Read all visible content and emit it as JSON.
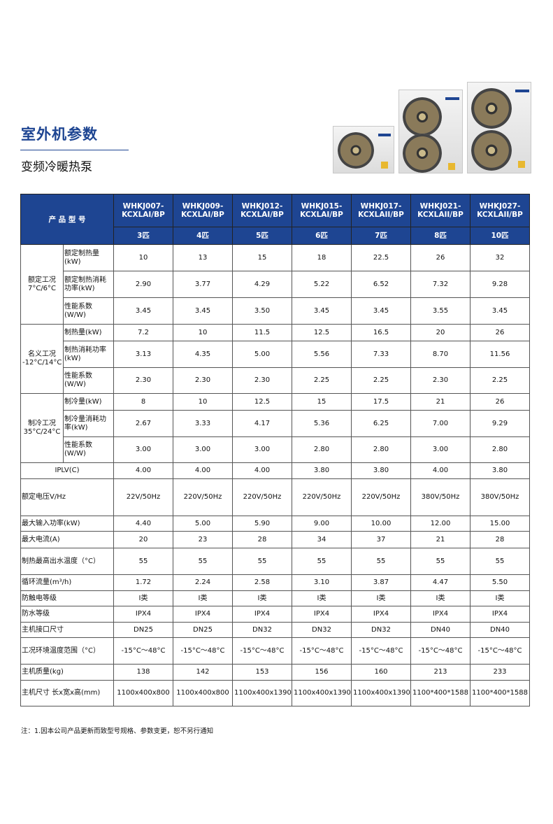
{
  "header": {
    "title": "室外机参数",
    "subtitle": "变频冷暖热泵"
  },
  "table": {
    "corner_label": "产 品 型 号",
    "models": [
      "WHKJ007-KCXLAI/BP",
      "WHKJ009-KCXLAI/BP",
      "WHKJ012-KCXLAI/BP",
      "WHKJ015-KCXLAI/BP",
      "WHKJ017-KCXLAII/BP",
      "WHKJ021-KCXLAII/BP",
      "WHKJ027-KCXLAII/BP"
    ],
    "horsepower": [
      "3匹",
      "4匹",
      "5匹",
      "6匹",
      "7匹",
      "8匹",
      "10匹"
    ],
    "groups": [
      {
        "label": "额定工况\n7°C/6°C",
        "rows": [
          {
            "label": "额定制热量(kW)",
            "values": [
              "10",
              "13",
              "15",
              "18",
              "22.5",
              "26",
              "32"
            ]
          },
          {
            "label": "额定制热消耗功率(kW)",
            "values": [
              "2.90",
              "3.77",
              "4.29",
              "5.22",
              "6.52",
              "7.32",
              "9.28"
            ]
          },
          {
            "label": "性能系数(W/W)",
            "values": [
              "3.45",
              "3.45",
              "3.50",
              "3.45",
              "3.45",
              "3.55",
              "3.45"
            ]
          }
        ]
      },
      {
        "label": "名义工况\n-12°C/14°C",
        "rows": [
          {
            "label": "制热量(kW)",
            "values": [
              "7.2",
              "10",
              "11.5",
              "12.5",
              "16.5",
              "20",
              "26"
            ]
          },
          {
            "label": "制热消耗功率(kW)",
            "values": [
              "3.13",
              "4.35",
              "5.00",
              "5.56",
              "7.33",
              "8.70",
              "11.56"
            ]
          },
          {
            "label": "性能系数(W/W)",
            "values": [
              "2.30",
              "2.30",
              "2.30",
              "2.25",
              "2.25",
              "2.30",
              "2.25"
            ]
          }
        ]
      },
      {
        "label": "制冷工况\n35°C/24°C",
        "rows": [
          {
            "label": "制冷量(kW)",
            "values": [
              "8",
              "10",
              "12.5",
              "15",
              "17.5",
              "21",
              "26"
            ]
          },
          {
            "label": "制冷量消耗功率(kW)",
            "values": [
              "2.67",
              "3.33",
              "4.17",
              "5.36",
              "6.25",
              "7.00",
              "9.29"
            ]
          },
          {
            "label": "性能系数(W/W)",
            "values": [
              "3.00",
              "3.00",
              "3.00",
              "2.80",
              "2.80",
              "3.00",
              "2.80"
            ]
          }
        ]
      }
    ],
    "iplv": {
      "label": "IPLV(C)",
      "values": [
        "4.00",
        "4.00",
        "4.00",
        "3.80",
        "3.80",
        "4.00",
        "3.80"
      ]
    },
    "rows": [
      {
        "label": "额定电压V/Hz",
        "values": [
          "22V/50Hz",
          "220V/50Hz",
          "220V/50Hz",
          "220V/50Hz",
          "220V/50Hz",
          "380V/50Hz",
          "380V/50Hz"
        ]
      },
      {
        "label": "最大输入功率(kW)",
        "values": [
          "4.40",
          "5.00",
          "5.90",
          "9.00",
          "10.00",
          "12.00",
          "15.00"
        ]
      },
      {
        "label": "最大电流(A)",
        "values": [
          "20",
          "23",
          "28",
          "34",
          "37",
          "21",
          "28"
        ]
      },
      {
        "label": "制热最高出水温度（°C）",
        "values": [
          "55",
          "55",
          "55",
          "55",
          "55",
          "55",
          "55"
        ]
      },
      {
        "label": "循环流量(m³/h)",
        "values": [
          "1.72",
          "2.24",
          "2.58",
          "3.10",
          "3.87",
          "4.47",
          "5.50"
        ]
      },
      {
        "label": "防触电等级",
        "values": [
          "I类",
          "I类",
          "I类",
          "I类",
          "I类",
          "I类",
          "I类"
        ]
      },
      {
        "label": "防水等级",
        "values": [
          "IPX4",
          "IPX4",
          "IPX4",
          "IPX4",
          "IPX4",
          "IPX4",
          "IPX4"
        ]
      },
      {
        "label": "主机接口尺寸",
        "values": [
          "DN25",
          "DN25",
          "DN32",
          "DN32",
          "DN32",
          "DN40",
          "DN40"
        ]
      },
      {
        "label": "工况环境温度范围（°C）",
        "values": [
          "-15°C～48°C",
          "-15°C～48°C",
          "-15°C～48°C",
          "-15°C～48°C",
          "-15°C～48°C",
          "-15°C～48°C",
          "-15°C～48°C"
        ]
      },
      {
        "label": "主机质量(kg)",
        "values": [
          "138",
          "142",
          "153",
          "156",
          "160",
          "213",
          "233"
        ]
      },
      {
        "label": "主机尺寸 长x宽x高(mm)",
        "values": [
          "1100x400x800",
          "1100x400x800",
          "1100x400x1390",
          "1100x400x1390",
          "1100x400x1390",
          "1100*400*1588",
          "1100*400*1588"
        ]
      }
    ]
  },
  "note": "注：1.因本公司产品更新而致型号规格、参数变更，恕不另行通知",
  "colors": {
    "brand": "#1e4592"
  }
}
